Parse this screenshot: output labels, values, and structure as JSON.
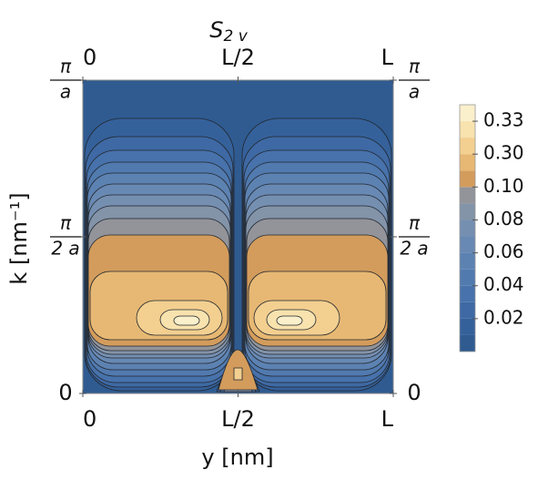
{
  "chart_data": {
    "type": "contour",
    "title": {
      "main": "S",
      "sub": "2 v"
    },
    "x_label": "y [nm]",
    "y_label": "k [nm⁻¹]",
    "xlim": [
      0,
      1
    ],
    "xticks": [
      0,
      {
        "value": 0.5,
        "label": "L/2"
      },
      {
        "value": 1,
        "label": "L"
      }
    ],
    "ylim": [
      0,
      1
    ],
    "yticks": [
      0,
      {
        "value": 0.5,
        "label": [
          "π",
          "2 a"
        ]
      },
      {
        "value": 1,
        "label": [
          "π",
          "a"
        ]
      }
    ],
    "colorbar": {
      "levels": [
        0,
        0.01,
        0.02,
        0.03,
        0.04,
        0.05,
        0.06,
        0.07,
        0.08,
        0.09,
        0.1,
        0.2,
        0.3,
        0.31,
        0.33,
        0.35
      ],
      "colors": [
        "#2f5b91",
        "#35619b",
        "#3e69a4",
        "#4772ab",
        "#517aaf",
        "#5c82b2",
        "#6889b3",
        "#758fb1",
        "#8393a8",
        "#92949a",
        "#d39c5c",
        "#e7b873",
        "#f3cf90",
        "#f8e2ae",
        "#fbf0cc"
      ],
      "ticks": [
        0.02,
        0.04,
        0.06,
        0.08,
        {
          "value": 0.1,
          "label": "0.10"
        },
        {
          "value": 0.3,
          "label": "0.30"
        },
        0.33
      ]
    }
  }
}
